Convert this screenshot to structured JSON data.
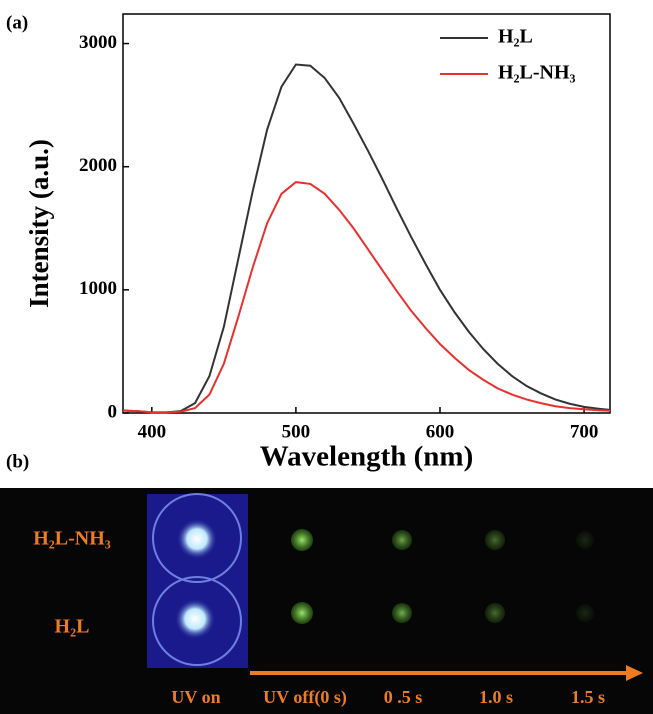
{
  "panel_labels": [
    "(a)",
    "(b)"
  ],
  "chart_data": {
    "type": "line",
    "x_label": "Wavelength (nm)",
    "y_label": "Intensity (a.u.)",
    "x": [
      380,
      390,
      400,
      410,
      420,
      430,
      440,
      450,
      460,
      470,
      480,
      490,
      500,
      510,
      520,
      530,
      540,
      550,
      560,
      570,
      580,
      590,
      600,
      610,
      620,
      630,
      640,
      650,
      660,
      670,
      680,
      690,
      700,
      710,
      718
    ],
    "series": [
      {
        "name": "H₂L",
        "color": "#333333",
        "values": [
          20,
          15,
          5,
          5,
          15,
          80,
          300,
          700,
          1250,
          1800,
          2300,
          2650,
          2830,
          2820,
          2720,
          2560,
          2350,
          2130,
          1900,
          1660,
          1430,
          1210,
          1000,
          820,
          660,
          520,
          400,
          300,
          220,
          160,
          110,
          75,
          50,
          35,
          25
        ]
      },
      {
        "name": "H₂L-NH₃",
        "color": "#e8312f",
        "values": [
          20,
          15,
          5,
          5,
          10,
          40,
          150,
          400,
          780,
          1180,
          1540,
          1780,
          1875,
          1860,
          1780,
          1650,
          1500,
          1330,
          1160,
          990,
          830,
          690,
          560,
          450,
          350,
          270,
          200,
          150,
          110,
          80,
          55,
          40,
          30,
          22,
          18
        ]
      }
    ],
    "xlim": [
      380,
      718
    ],
    "ylim": [
      0,
      3240
    ],
    "xticks": [
      400,
      500,
      600,
      700
    ],
    "yticks": [
      0,
      1000,
      2000,
      3000
    ],
    "grid": false,
    "legend": "top-right"
  },
  "photo": {
    "row_labels": [
      "H₂L-NH₃",
      "H₂L"
    ],
    "time_labels": [
      "UV on",
      "UV off(0 s)",
      "0 .5 s",
      "1.0 s",
      "1.5 s"
    ]
  }
}
